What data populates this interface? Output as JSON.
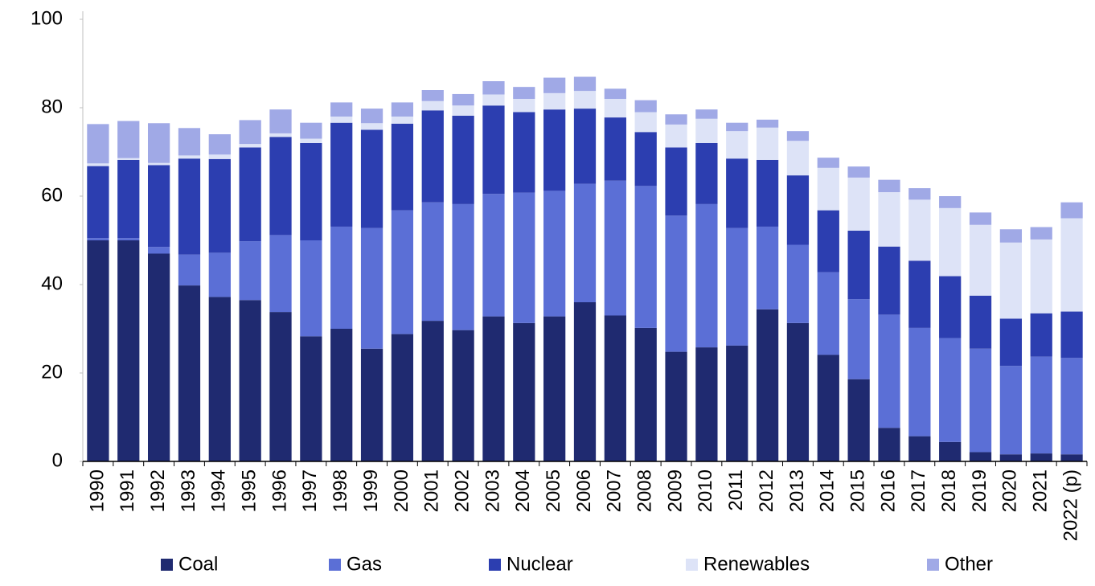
{
  "chart_data": {
    "type": "stacked_bar",
    "categories": [
      "1990",
      "1991",
      "1992",
      "1993",
      "1994",
      "1995",
      "1996",
      "1997",
      "1998",
      "1999",
      "2000",
      "2001",
      "2002",
      "2003",
      "2004",
      "2005",
      "2006",
      "2007",
      "2008",
      "2009",
      "2010",
      "2011",
      "2012",
      "2013",
      "2014",
      "2015",
      "2016",
      "2017",
      "2018",
      "2019",
      "2020",
      "2021",
      "2022 (p)"
    ],
    "series": [
      {
        "name": "Coal",
        "color": "#1f2a70",
        "values": [
          50,
          50,
          47,
          39.8,
          37.2,
          36.5,
          33.8,
          28.3,
          30,
          25.5,
          28.8,
          31.8,
          29.7,
          32.8,
          31.3,
          32.8,
          36,
          33,
          30.2,
          24.8,
          25.8,
          26.2,
          34.4,
          31.3,
          24.1,
          18.6,
          7.6,
          5.7,
          4.4,
          2.1,
          1.6,
          1.8,
          1.6
        ]
      },
      {
        "name": "Gas",
        "color": "#5b6fd6",
        "values": [
          0.5,
          0.5,
          1.5,
          7,
          10,
          13.3,
          17.4,
          21.7,
          23.1,
          27.3,
          28,
          26.8,
          28.5,
          27.7,
          29.5,
          28.4,
          26.8,
          30.5,
          32.1,
          30.8,
          32.4,
          26.6,
          18.7,
          17.7,
          18.7,
          18.1,
          25.6,
          24.5,
          23.5,
          23.4,
          20,
          21.9,
          21.8
        ]
      },
      {
        "name": "Nuclear",
        "color": "#2c3eb0",
        "values": [
          16.3,
          17.7,
          18.5,
          21.7,
          21.2,
          21.2,
          22.2,
          22,
          23.5,
          22.2,
          19.6,
          20.8,
          20,
          20,
          18.2,
          18.4,
          17,
          14.3,
          12.2,
          15.4,
          13.8,
          15.7,
          15.1,
          15.7,
          14,
          15.5,
          15.4,
          15.2,
          14,
          12,
          10.7,
          9.8,
          10.5
        ]
      },
      {
        "name": "Renewables",
        "color": "#dde3f7",
        "values": [
          0.6,
          0.4,
          0.5,
          0.7,
          1,
          0.8,
          0.8,
          1,
          1.4,
          1.5,
          1.6,
          2.1,
          2.3,
          2.5,
          3,
          3.7,
          4,
          4.2,
          4.5,
          5.2,
          5.5,
          6.2,
          7.3,
          7.8,
          9.6,
          12,
          12.3,
          13.8,
          15.4,
          16,
          17.2,
          16.7,
          21.1
        ]
      },
      {
        "name": "Other",
        "color": "#a0a9e6",
        "values": [
          8.9,
          8.4,
          9,
          6.2,
          4.6,
          5.4,
          5.4,
          3.6,
          3.2,
          3.3,
          3.2,
          2.5,
          2.6,
          3,
          2.7,
          3.5,
          3.2,
          2.3,
          2.7,
          2.3,
          2.1,
          1.9,
          1.8,
          2.2,
          2.3,
          2.5,
          2.8,
          2.6,
          2.7,
          2.8,
          3,
          2.8,
          3.6
        ]
      }
    ],
    "ylim": [
      0,
      100
    ],
    "yticks": [
      0,
      20,
      40,
      60,
      80,
      100
    ],
    "grid": false,
    "legend": "bottom"
  }
}
